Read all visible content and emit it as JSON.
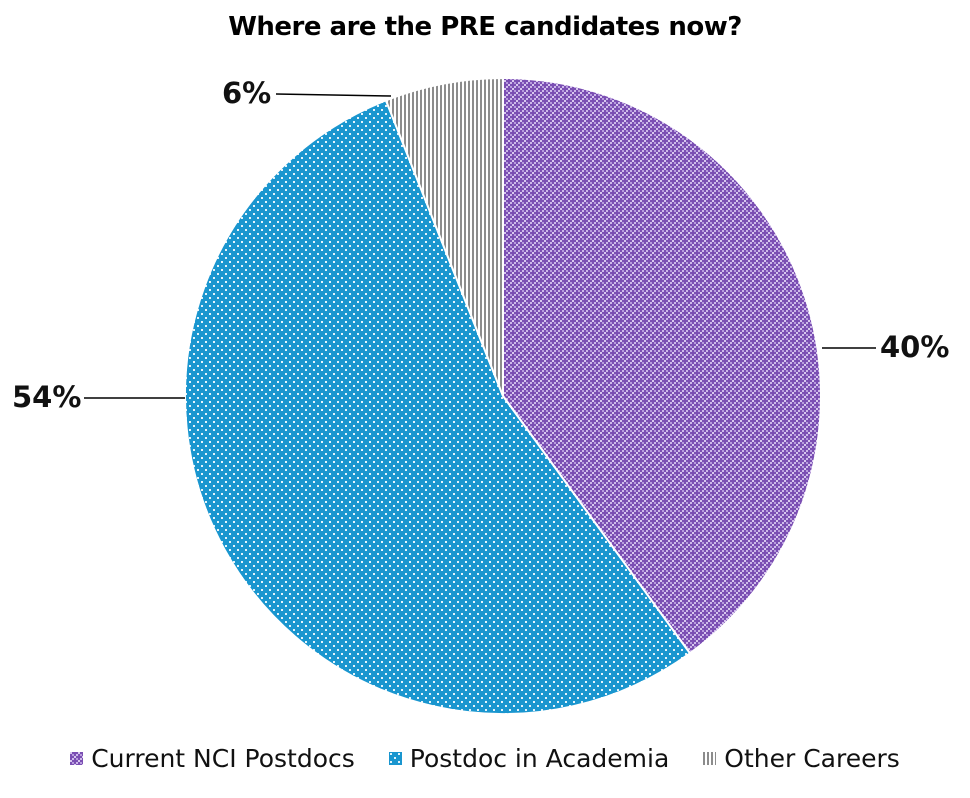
{
  "chart_data": {
    "type": "pie",
    "title": "Where are the PRE candidates now?",
    "categories": [
      "Current NCI Postdocs",
      "Postdoc in Academia",
      "Other Careers"
    ],
    "values": [
      40,
      54,
      6
    ],
    "data_labels": [
      "40%",
      "54%",
      "6%"
    ],
    "colors": [
      "#7B4FB3",
      "#1A96CF",
      "#8C8C8C"
    ],
    "patterns": [
      "purple checker/cross hatch",
      "blue with white dots",
      "grey vertical stripes"
    ],
    "start_angle_deg": 0,
    "direction": "clockwise",
    "legend_position": "bottom"
  },
  "labels": {
    "title": "Where are the PRE candidates now?",
    "slice_0": "40%",
    "slice_1": "54%",
    "slice_2": "6%"
  },
  "legend": {
    "items": [
      {
        "label": "Current NCI Postdocs",
        "color": "#7B4FB3"
      },
      {
        "label": "Postdoc in Academia",
        "color": "#1A96CF"
      },
      {
        "label": "Other Careers",
        "color": "#8C8C8C"
      }
    ]
  }
}
